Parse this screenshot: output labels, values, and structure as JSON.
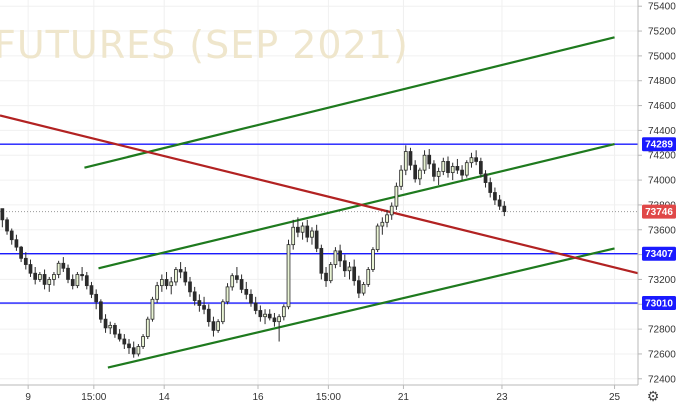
{
  "watermark": "FUTURES (SEP 2021)",
  "settings_icon": "gear-icon",
  "chart_data": {
    "type": "candlestick",
    "ylim": [
      72350,
      75450
    ],
    "y_ticks": [
      75400,
      75200,
      75000,
      74800,
      74600,
      74400,
      74200,
      74000,
      73800,
      73600,
      73400,
      73200,
      73000,
      72800,
      72600,
      72400
    ],
    "x_ticks": [
      {
        "label": "9",
        "t": 6
      },
      {
        "label": "15:00",
        "t": 20
      },
      {
        "label": "14",
        "t": 35
      },
      {
        "label": "16",
        "t": 55
      },
      {
        "label": "15:00",
        "t": 70
      },
      {
        "label": "21",
        "t": 86
      },
      {
        "label": "23",
        "t": 107
      },
      {
        "label": "25",
        "t": 131
      }
    ],
    "xlim": [
      0,
      136
    ],
    "horizontal_levels": [
      {
        "value": 74289,
        "label": "74289",
        "color": "#1a1aff"
      },
      {
        "value": 73407,
        "label": "73407",
        "color": "#1a1aff"
      },
      {
        "value": 73010,
        "label": "73010",
        "color": "#1a1aff"
      }
    ],
    "current_price": {
      "value": 73746,
      "label": "73746",
      "color": "#e04848"
    },
    "trend_lines": [
      {
        "color": "#1e7a1e",
        "from": [
          18,
          74100
        ],
        "to": [
          131,
          75150
        ]
      },
      {
        "color": "#1e7a1e",
        "from": [
          21,
          73290
        ],
        "to": [
          131,
          74290
        ]
      },
      {
        "color": "#1e7a1e",
        "from": [
          23,
          72490
        ],
        "to": [
          131,
          73450
        ]
      },
      {
        "color": "#b22222",
        "from": [
          0,
          74520
        ],
        "to": [
          136,
          73250
        ]
      }
    ],
    "candles": [
      [
        73770,
        73760,
        73620,
        73680
      ],
      [
        73680,
        73700,
        73560,
        73590
      ],
      [
        73590,
        73610,
        73480,
        73520
      ],
      [
        73520,
        73560,
        73430,
        73460
      ],
      [
        73460,
        73470,
        73340,
        73370
      ],
      [
        73370,
        73420,
        73280,
        73320
      ],
      [
        73320,
        73360,
        73220,
        73250
      ],
      [
        73250,
        73300,
        73160,
        73200
      ],
      [
        73200,
        73260,
        73180,
        73240
      ],
      [
        73240,
        73280,
        73120,
        73160
      ],
      [
        73160,
        73220,
        73100,
        73200
      ],
      [
        73200,
        73260,
        73150,
        73240
      ],
      [
        73240,
        73350,
        73210,
        73330
      ],
      [
        73330,
        73380,
        73260,
        73290
      ],
      [
        73290,
        73320,
        73170,
        73200
      ],
      [
        73200,
        73240,
        73120,
        73150
      ],
      [
        73150,
        73260,
        73130,
        73240
      ],
      [
        73240,
        73300,
        73190,
        73230
      ],
      [
        73230,
        73260,
        73120,
        73150
      ],
      [
        73150,
        73180,
        73050,
        73080
      ],
      [
        73080,
        73120,
        72960,
        73020
      ],
      [
        73020,
        73040,
        72850,
        72880
      ],
      [
        72880,
        72920,
        72770,
        72810
      ],
      [
        72810,
        72860,
        72760,
        72830
      ],
      [
        72830,
        72850,
        72730,
        72760
      ],
      [
        72760,
        72800,
        72700,
        72720
      ],
      [
        72720,
        72760,
        72640,
        72680
      ],
      [
        72680,
        72720,
        72600,
        72650
      ],
      [
        72650,
        72700,
        72570,
        72600
      ],
      [
        72600,
        72680,
        72580,
        72660
      ],
      [
        72660,
        72760,
        72640,
        72740
      ],
      [
        72740,
        72900,
        72720,
        72880
      ],
      [
        72880,
        73060,
        72860,
        73040
      ],
      [
        73040,
        73180,
        73010,
        73150
      ],
      [
        73150,
        73240,
        73100,
        73200
      ],
      [
        73200,
        73260,
        73120,
        73150
      ],
      [
        73150,
        73220,
        73080,
        73180
      ],
      [
        73180,
        73300,
        73150,
        73280
      ],
      [
        73280,
        73340,
        73210,
        73260
      ],
      [
        73260,
        73300,
        73150,
        73180
      ],
      [
        73180,
        73220,
        73060,
        73100
      ],
      [
        73100,
        73140,
        72990,
        73030
      ],
      [
        73030,
        73080,
        72940,
        72990
      ],
      [
        72990,
        73060,
        72920,
        72960
      ],
      [
        72960,
        73000,
        72820,
        72860
      ],
      [
        72860,
        72900,
        72740,
        72790
      ],
      [
        72790,
        72880,
        72770,
        72860
      ],
      [
        72860,
        73040,
        72840,
        73020
      ],
      [
        73020,
        73170,
        73000,
        73140
      ],
      [
        73140,
        73250,
        73110,
        73230
      ],
      [
        73230,
        73300,
        73170,
        73200
      ],
      [
        73200,
        73240,
        73090,
        73120
      ],
      [
        73120,
        73180,
        73040,
        73080
      ],
      [
        73080,
        73120,
        72980,
        73010
      ],
      [
        73010,
        73060,
        72920,
        72950
      ],
      [
        72950,
        72990,
        72860,
        72900
      ],
      [
        72900,
        72960,
        72840,
        72920
      ],
      [
        72920,
        72960,
        72870,
        72890
      ],
      [
        72890,
        72930,
        72820,
        72860
      ],
      [
        72860,
        72920,
        72700,
        72900
      ],
      [
        72900,
        73000,
        72870,
        72980
      ],
      [
        72980,
        73520,
        72960,
        73480
      ],
      [
        73480,
        73680,
        73440,
        73620
      ],
      [
        73620,
        73700,
        73540,
        73580
      ],
      [
        73580,
        73660,
        73520,
        73630
      ],
      [
        73630,
        73680,
        73500,
        73540
      ],
      [
        73540,
        73620,
        73480,
        73590
      ],
      [
        73590,
        73640,
        73420,
        73450
      ],
      [
        73450,
        73480,
        73200,
        73250
      ],
      [
        73250,
        73300,
        73140,
        73190
      ],
      [
        73190,
        73340,
        73170,
        73320
      ],
      [
        73320,
        73460,
        73290,
        73430
      ],
      [
        73430,
        73480,
        73300,
        73350
      ],
      [
        73350,
        73400,
        73220,
        73270
      ],
      [
        73270,
        73340,
        73200,
        73300
      ],
      [
        73300,
        73360,
        73150,
        73190
      ],
      [
        73190,
        73230,
        73050,
        73090
      ],
      [
        73090,
        73180,
        73070,
        73160
      ],
      [
        73160,
        73300,
        73140,
        73280
      ],
      [
        73280,
        73460,
        73260,
        73440
      ],
      [
        73440,
        73650,
        73420,
        73630
      ],
      [
        73630,
        73700,
        73560,
        73660
      ],
      [
        73660,
        73760,
        73620,
        73720
      ],
      [
        73720,
        73820,
        73680,
        73790
      ],
      [
        73790,
        73980,
        73760,
        73950
      ],
      [
        73950,
        74120,
        73920,
        74080
      ],
      [
        74080,
        74280,
        74040,
        74230
      ],
      [
        74230,
        74260,
        74080,
        74120
      ],
      [
        74120,
        74160,
        73980,
        74010
      ],
      [
        74010,
        74100,
        73960,
        74080
      ],
      [
        74080,
        74240,
        74050,
        74200
      ],
      [
        74200,
        74250,
        74090,
        74130
      ],
      [
        74130,
        74160,
        73990,
        74030
      ],
      [
        74030,
        74100,
        73960,
        74070
      ],
      [
        74070,
        74180,
        74040,
        74150
      ],
      [
        74150,
        74190,
        74020,
        74060
      ],
      [
        74060,
        74140,
        74000,
        74110
      ],
      [
        74110,
        74170,
        74050,
        74080
      ],
      [
        74080,
        74120,
        74000,
        74040
      ],
      [
        74040,
        74160,
        74020,
        74140
      ],
      [
        74140,
        74220,
        74100,
        74180
      ],
      [
        74180,
        74240,
        74120,
        74150
      ],
      [
        74150,
        74180,
        74020,
        74050
      ],
      [
        74050,
        74080,
        73940,
        73980
      ],
      [
        73980,
        74020,
        73860,
        73900
      ],
      [
        73900,
        73940,
        73800,
        73840
      ],
      [
        73840,
        73880,
        73760,
        73790
      ],
      [
        73790,
        73830,
        73710,
        73746
      ]
    ]
  }
}
